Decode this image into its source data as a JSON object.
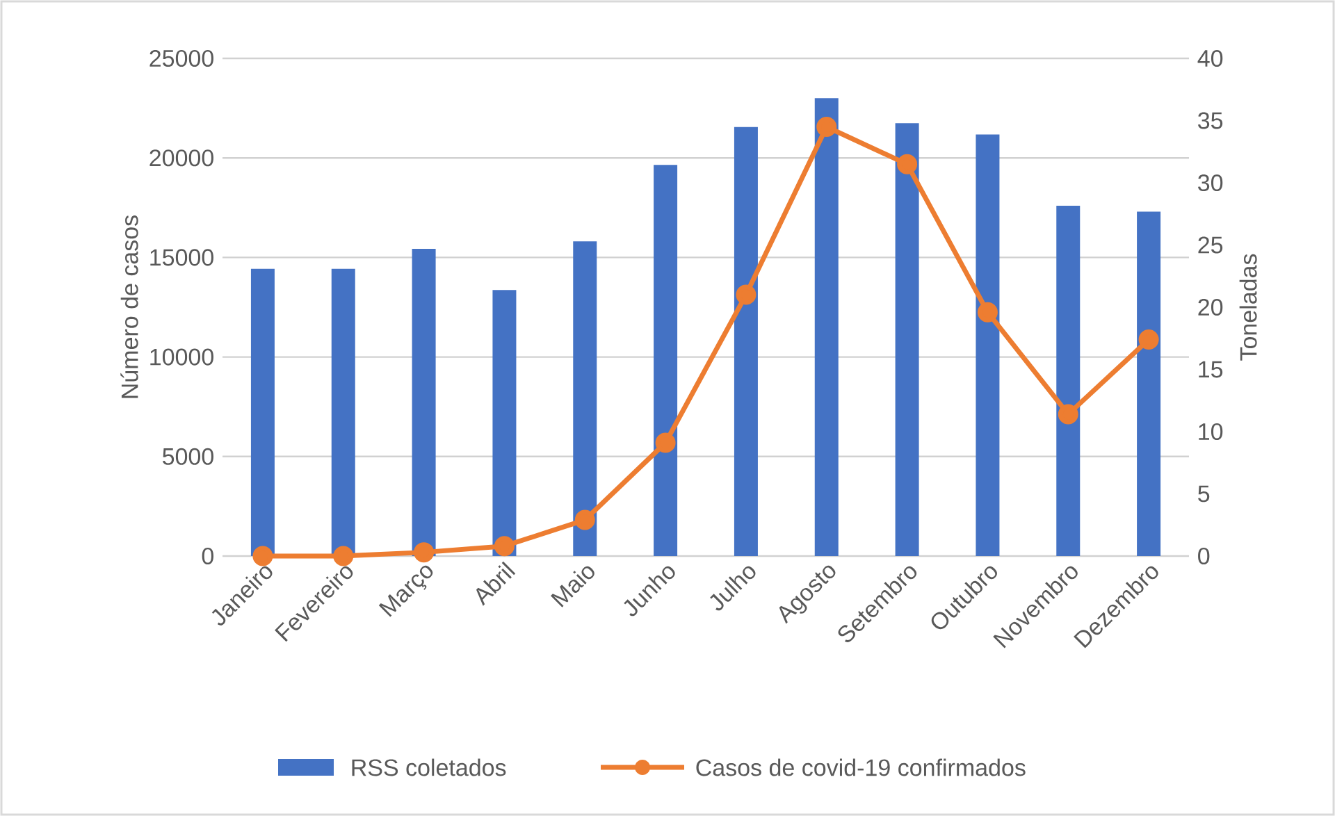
{
  "chart_data": {
    "type": "bar",
    "categories": [
      "Janeiro",
      "Fevereiro",
      "Março",
      "Abril",
      "Maio",
      "Junho",
      "Julho",
      "Agosto",
      "Setembro",
      "Outubro",
      "Novembro",
      "Dezembro"
    ],
    "series": [
      {
        "name": "RSS coletados",
        "color": "#4472c4",
        "values": [
          14430,
          14430,
          15430,
          13360,
          15810,
          19650,
          21550,
          23000,
          21740,
          21180,
          17600,
          17300
        ]
      },
      {
        "name": "Casos de covid-19 confirmados",
        "type": "line",
        "axis": "y2",
        "color": "#ed7d31",
        "marker": "circle",
        "values": [
          0,
          0,
          0.3,
          0.8,
          2.9,
          9.1,
          21,
          34.5,
          31.5,
          19.6,
          11.4,
          17.4
        ]
      }
    ],
    "ylabel": "Número de casos",
    "y2label": "Toneladas",
    "ylim": [
      0,
      25000
    ],
    "yticks": [
      0,
      5000,
      10000,
      15000,
      20000,
      25000
    ],
    "y2lim": [
      0,
      40
    ],
    "y2ticks": [
      0,
      5,
      10,
      15,
      20,
      25,
      30,
      35,
      40
    ],
    "grid": "y",
    "legend": "bottom"
  }
}
